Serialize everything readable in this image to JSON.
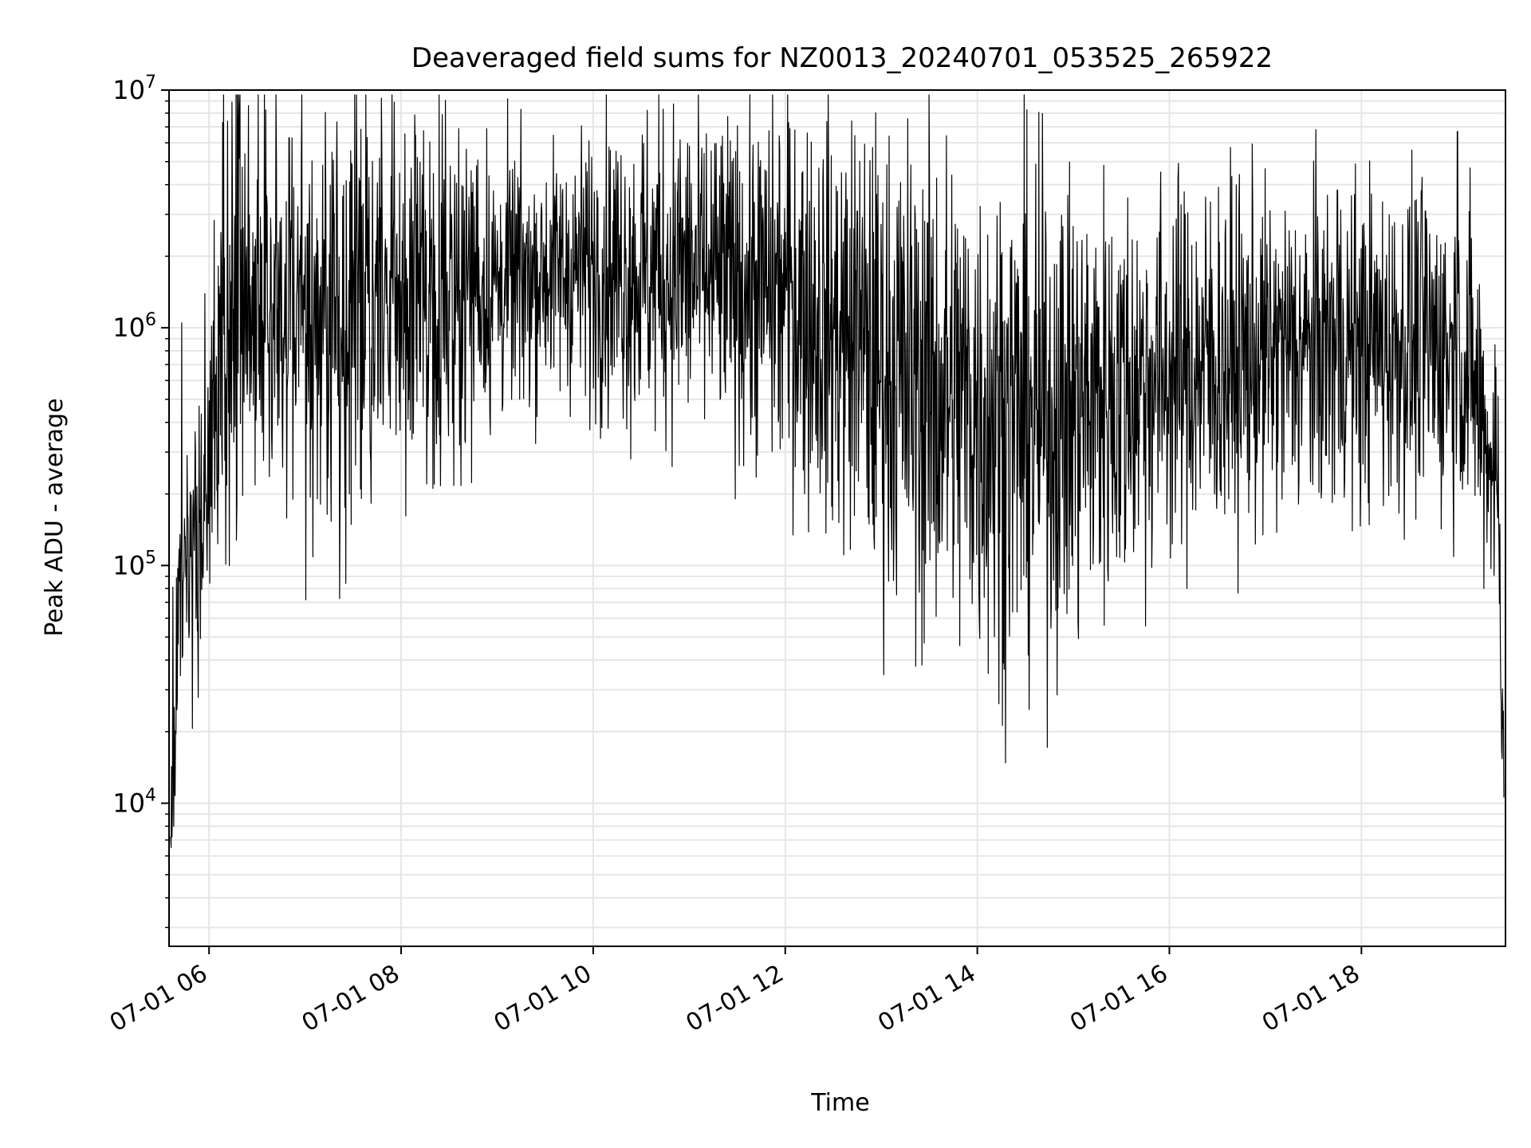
{
  "chart_data": {
    "type": "line",
    "title": "Deaveraged field sums for NZ0013_20240701_053525_265922",
    "xlabel": "Time",
    "ylabel": "Peak ADU - average",
    "y_scale": "log",
    "ylim": [
      2500,
      10000000
    ],
    "xlim": [
      "2024-07-01 05:35",
      "2024-07-01 19:30"
    ],
    "grid": true,
    "grid_color": "#e6e6e6",
    "line_color": "#000000",
    "x_ticks": [
      {
        "x": "2024-07-01 06:00",
        "label": "07-01 06"
      },
      {
        "x": "2024-07-01 08:00",
        "label": "07-01 08"
      },
      {
        "x": "2024-07-01 10:00",
        "label": "07-01 10"
      },
      {
        "x": "2024-07-01 12:00",
        "label": "07-01 12"
      },
      {
        "x": "2024-07-01 14:00",
        "label": "07-01 14"
      },
      {
        "x": "2024-07-01 16:00",
        "label": "07-01 16"
      },
      {
        "x": "2024-07-01 18:00",
        "label": "07-01 18"
      }
    ],
    "y_ticks": [
      {
        "value": 10000,
        "base": "10",
        "exp": "4"
      },
      {
        "value": 100000,
        "base": "10",
        "exp": "5"
      },
      {
        "value": 1000000,
        "base": "10",
        "exp": "6"
      },
      {
        "value": 10000000,
        "base": "10",
        "exp": "7"
      }
    ],
    "series": [
      {
        "x": [
          "2024-07-01 05:36",
          "2024-07-01 05:38",
          "2024-07-01 05:40",
          "2024-07-01 05:45",
          "2024-07-01 05:50",
          "2024-07-01 05:55",
          "2024-07-01 06:00",
          "2024-07-01 06:05",
          "2024-07-01 06:10",
          "2024-07-01 06:20",
          "2024-07-01 06:30",
          "2024-07-01 06:45",
          "2024-07-01 07:00",
          "2024-07-01 07:30",
          "2024-07-01 08:00",
          "2024-07-01 08:30",
          "2024-07-01 09:00",
          "2024-07-01 09:30",
          "2024-07-01 10:00",
          "2024-07-01 10:30",
          "2024-07-01 11:00",
          "2024-07-01 11:30",
          "2024-07-01 12:00",
          "2024-07-01 12:30",
          "2024-07-01 13:00",
          "2024-07-01 13:30",
          "2024-07-01 14:00",
          "2024-07-01 14:30",
          "2024-07-01 15:00",
          "2024-07-01 15:30",
          "2024-07-01 16:00",
          "2024-07-01 16:30",
          "2024-07-01 17:00",
          "2024-07-01 17:30",
          "2024-07-01 18:00",
          "2024-07-01 18:30",
          "2024-07-01 19:00",
          "2024-07-01 19:10",
          "2024-07-01 19:20",
          "2024-07-01 19:25",
          "2024-07-01 19:29"
        ],
        "values": [
          5000,
          20000,
          50000,
          70000,
          100000,
          150000,
          250000,
          500000,
          900000,
          1200000,
          1300000,
          1300000,
          1200000,
          1200000,
          1300000,
          1500000,
          1500000,
          1700000,
          1800000,
          1700000,
          1700000,
          1500000,
          1400000,
          1000000,
          700000,
          550000,
          450000,
          400000,
          450000,
          550000,
          650000,
          700000,
          750000,
          800000,
          850000,
          850000,
          800000,
          600000,
          300000,
          250000,
          15000
        ],
        "spread": [
          0.25,
          0.3,
          0.3,
          0.3,
          0.3,
          0.3,
          0.35,
          0.5,
          0.55,
          0.55,
          0.5,
          0.45,
          0.45,
          0.45,
          0.45,
          0.35,
          0.3,
          0.25,
          0.3,
          0.35,
          0.35,
          0.35,
          0.4,
          0.45,
          0.5,
          0.55,
          0.55,
          0.55,
          0.5,
          0.45,
          0.4,
          0.4,
          0.35,
          0.35,
          0.35,
          0.35,
          0.35,
          0.35,
          0.3,
          0.3,
          0.2
        ]
      }
    ],
    "spikes": [
      {
        "x": "2024-07-01 05:43",
        "value": 1050000
      },
      {
        "x": "2024-07-01 06:18",
        "value": 6900000
      },
      {
        "x": "2024-07-01 06:50",
        "value": 6300000
      },
      {
        "x": "2024-07-01 08:47",
        "value": 4800000
      },
      {
        "x": "2024-07-01 10:40",
        "value": 4000000
      },
      {
        "x": "2024-07-01 12:06",
        "value": 6800000
      },
      {
        "x": "2024-07-01 12:45",
        "value": 3100000
      },
      {
        "x": "2024-07-01 17:45",
        "value": 3800000
      },
      {
        "x": "2024-07-01 18:40",
        "value": 3100000
      },
      {
        "x": "2024-07-01 19:00",
        "value": 6700000
      }
    ]
  }
}
